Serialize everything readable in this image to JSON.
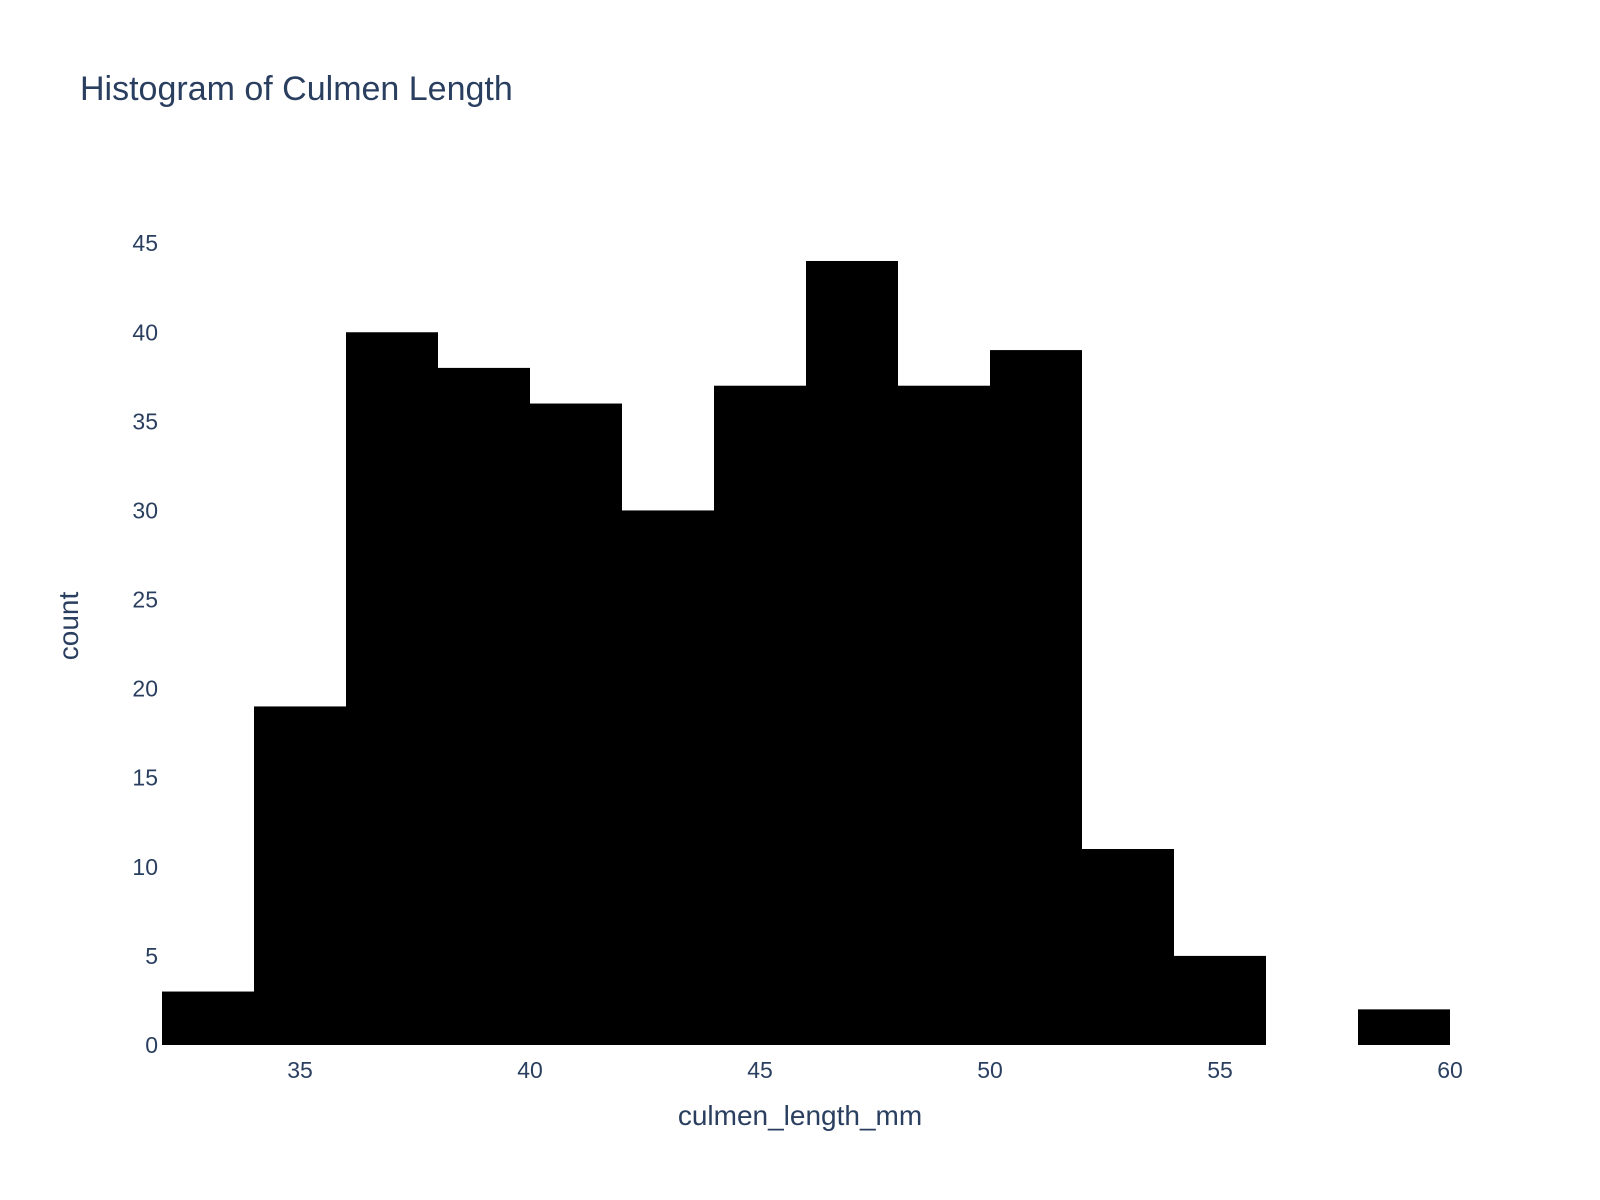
{
  "chart_data": {
    "type": "bar",
    "title": "Histogram of Culmen Length",
    "xlabel": "culmen_length_mm",
    "ylabel": "count",
    "bin_width": 2,
    "bins": [
      {
        "start": 32,
        "end": 34,
        "count": 3
      },
      {
        "start": 34,
        "end": 36,
        "count": 19
      },
      {
        "start": 36,
        "end": 38,
        "count": 40
      },
      {
        "start": 38,
        "end": 40,
        "count": 38
      },
      {
        "start": 40,
        "end": 42,
        "count": 36
      },
      {
        "start": 42,
        "end": 44,
        "count": 30
      },
      {
        "start": 44,
        "end": 46,
        "count": 37
      },
      {
        "start": 46,
        "end": 48,
        "count": 44
      },
      {
        "start": 48,
        "end": 50,
        "count": 37
      },
      {
        "start": 50,
        "end": 52,
        "count": 39
      },
      {
        "start": 52,
        "end": 54,
        "count": 11
      },
      {
        "start": 54,
        "end": 56,
        "count": 5
      },
      {
        "start": 56,
        "end": 58,
        "count": 0
      },
      {
        "start": 58,
        "end": 60,
        "count": 2
      }
    ],
    "xlim": [
      32,
      60
    ],
    "ylim": [
      0,
      46.3
    ],
    "x_ticks": [
      35,
      40,
      45,
      50,
      55,
      60
    ],
    "y_ticks": [
      0,
      5,
      10,
      15,
      20,
      25,
      30,
      35,
      40,
      45
    ],
    "bar_color": "#000000",
    "grid": false,
    "legend": false
  }
}
